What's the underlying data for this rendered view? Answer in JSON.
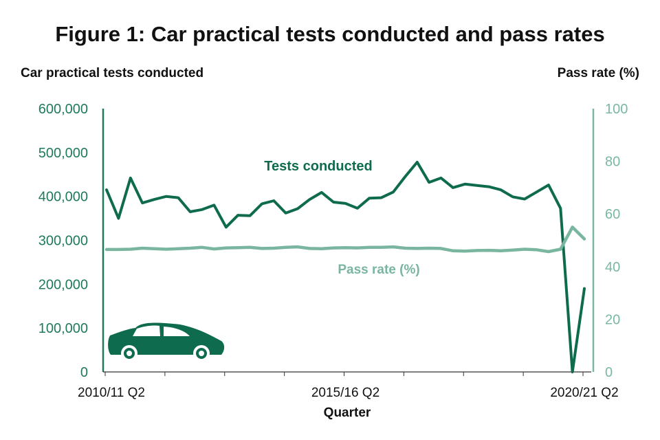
{
  "chart_data": {
    "type": "line",
    "title": "Figure 1: Car practical tests conducted and pass rates",
    "xlabel": "Quarter",
    "ylabel_left": "Car practical tests conducted",
    "ylabel_right": "Pass rate (%)",
    "ylim_left": [
      0,
      600000
    ],
    "ylim_right": [
      0,
      100
    ],
    "y_ticks_left": [
      "0",
      "100,000",
      "200,000",
      "300,000",
      "400,000",
      "500,000",
      "600,000"
    ],
    "y_ticks_right": [
      "0",
      "20",
      "40",
      "60",
      "80",
      "100"
    ],
    "x_tick_labels": [
      {
        "index": 0,
        "label": "2010/11 Q2"
      },
      {
        "index": 20,
        "label": "2015/16 Q2"
      },
      {
        "index": 40,
        "label": "2020/21 Q2"
      }
    ],
    "categories_count": 41,
    "series": [
      {
        "name": "Tests conducted",
        "axis": "left",
        "color": "#0f6b4e",
        "values": [
          415000,
          350000,
          442000,
          385000,
          393000,
          400000,
          397000,
          365000,
          370000,
          380000,
          330000,
          357000,
          356000,
          383000,
          390000,
          362000,
          372000,
          393000,
          409000,
          387000,
          384000,
          373000,
          396000,
          397000,
          410000,
          445000,
          478000,
          432000,
          442000,
          420000,
          428000,
          425000,
          422000,
          415000,
          399000,
          394000,
          410000,
          426000,
          373000,
          0,
          190000
        ]
      },
      {
        "name": "Pass rate (%)",
        "axis": "right",
        "color": "#79b59f",
        "values": [
          46.5,
          46.5,
          46.6,
          47.0,
          46.8,
          46.6,
          46.8,
          47.0,
          47.3,
          46.7,
          47.1,
          47.2,
          47.3,
          46.9,
          47.0,
          47.3,
          47.5,
          46.9,
          46.8,
          47.1,
          47.2,
          47.1,
          47.3,
          47.3,
          47.5,
          47.0,
          46.9,
          47.0,
          46.9,
          46.0,
          45.9,
          46.1,
          46.2,
          46.0,
          46.3,
          46.6,
          46.4,
          45.7,
          46.6,
          55.0,
          50.5
        ]
      }
    ]
  }
}
